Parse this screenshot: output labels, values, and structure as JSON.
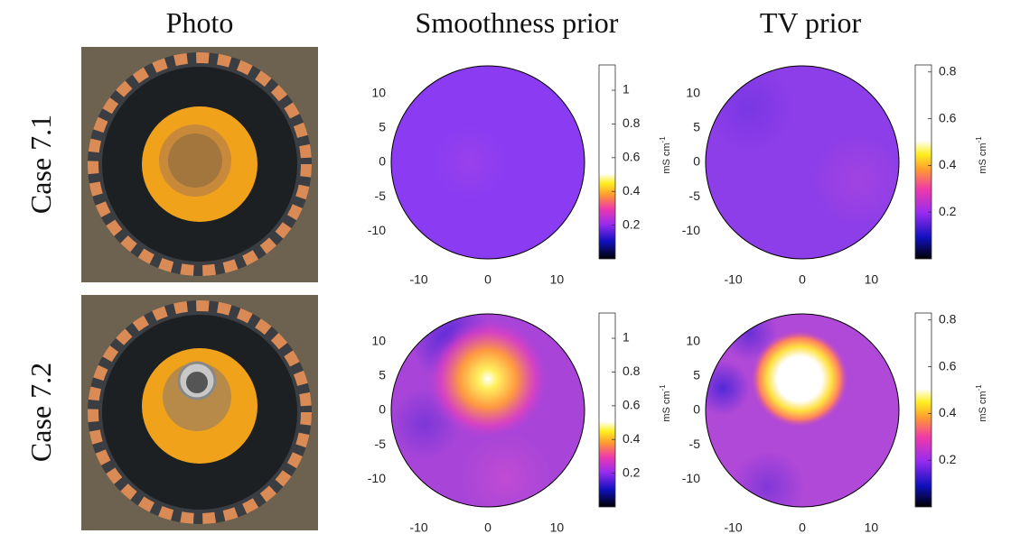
{
  "columns": [
    "Photo",
    "Smoothness prior",
    "TV prior"
  ],
  "rows": [
    {
      "label": "Case 7.1"
    },
    {
      "label": "Case 7.2"
    }
  ],
  "axes": {
    "xlim": [
      -14,
      14
    ],
    "ylim": [
      -14,
      14
    ],
    "xticks": [
      -10,
      0,
      10
    ],
    "yticks": [
      10,
      5,
      0,
      -5,
      -10
    ]
  },
  "colorbars": [
    {
      "lim": [
        0,
        1.15
      ],
      "ticks": [
        0.2,
        0.4,
        0.6,
        0.8,
        1
      ]
    },
    {
      "lim": [
        0,
        0.83
      ],
      "ticks": [
        0.2,
        0.4,
        0.6,
        0.8
      ]
    }
  ],
  "colorbar_unit": {
    "base": "mS cm",
    "exp": "-1"
  }
}
